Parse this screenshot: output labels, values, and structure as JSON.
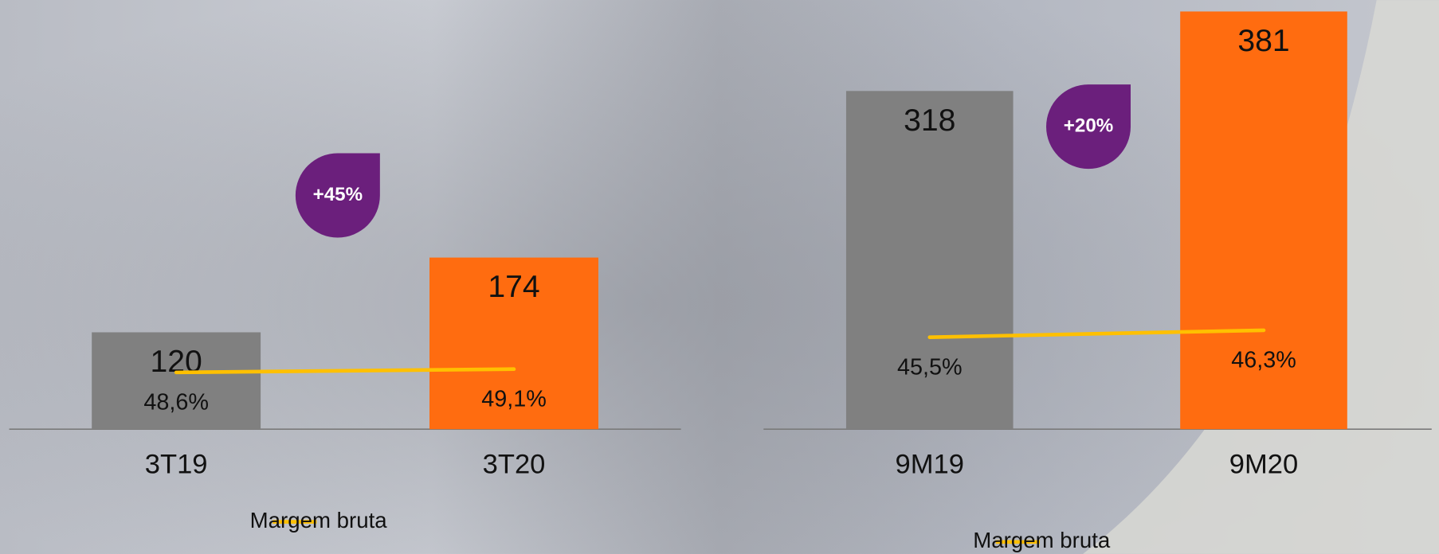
{
  "chart_data": [
    {
      "type": "bar",
      "categories": [
        "3T19",
        "3T20"
      ],
      "values": [
        120,
        174
      ],
      "colors": [
        "#808080",
        "#ff6c10"
      ],
      "ylim": [
        50,
        360
      ],
      "series": [
        {
          "name": "Margem bruta",
          "color": "#ffc000",
          "values": [
            48.6,
            49.1
          ],
          "value_labels": [
            "48,6%",
            "49,1%"
          ],
          "axis": "y2"
        }
      ],
      "y2lim": [
        40,
        105
      ],
      "annotations": [
        "+45%"
      ]
    },
    {
      "type": "bar",
      "categories": [
        "9M19",
        "9M20"
      ],
      "values": [
        318,
        381
      ],
      "colors": [
        "#808080",
        "#ff6c10"
      ],
      "ylim": [
        50,
        390
      ],
      "series": [
        {
          "name": "Margem bruta",
          "color": "#ffc000",
          "values": [
            45.5,
            46.3
          ],
          "value_labels": [
            "45,5%",
            "46,3%"
          ],
          "axis": "y2"
        }
      ],
      "y2lim": [
        35,
        84
      ],
      "annotations": [
        "+20%"
      ]
    }
  ]
}
